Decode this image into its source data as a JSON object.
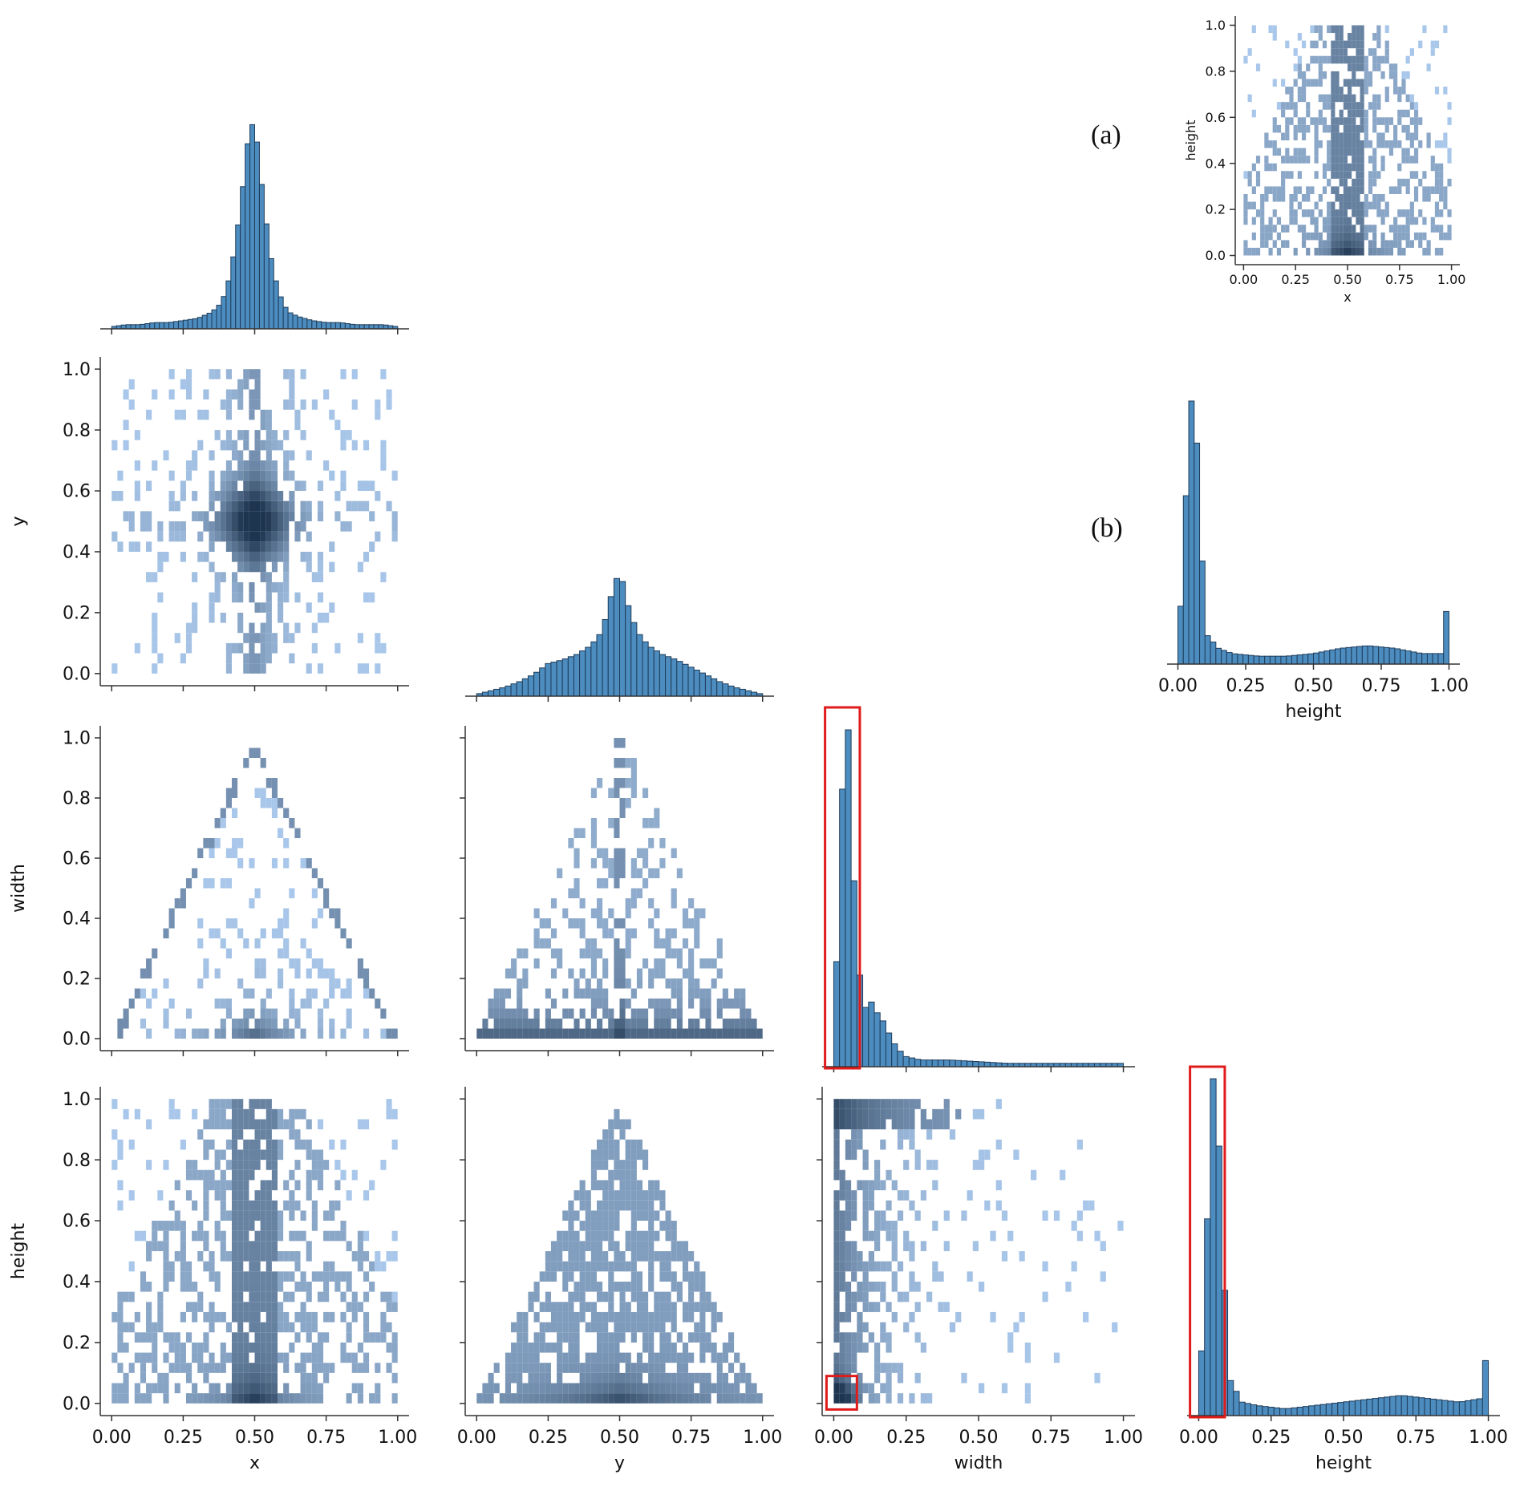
{
  "colors": {
    "bar": "#4c8cbf",
    "bar_edge": "#1f3c5a",
    "heat_light": "#a9c7ea",
    "heat_dark": "#1e3550",
    "highlight": "#e01b1b",
    "axis": "#333333"
  },
  "annotations": {
    "a": "(a)",
    "b": "(b)"
  },
  "chart_data": [
    {
      "id": "hist_x",
      "type": "bar",
      "x": [
        0.0,
        0.05,
        0.1,
        0.15,
        0.2,
        0.25,
        0.3,
        0.35,
        0.38,
        0.4,
        0.42,
        0.44,
        0.46,
        0.48,
        0.5,
        0.52,
        0.54,
        0.56,
        0.58,
        0.6,
        0.62,
        0.65,
        0.7,
        0.75,
        0.8,
        0.85,
        0.9,
        0.95,
        1.0
      ],
      "values": [
        1,
        2,
        2,
        3,
        3,
        4,
        5,
        8,
        12,
        18,
        30,
        48,
        70,
        95,
        100,
        75,
        52,
        32,
        20,
        12,
        8,
        6,
        4,
        3,
        3,
        2,
        2,
        2,
        1
      ],
      "xlim": [
        0,
        1
      ],
      "ylabel": ""
    },
    {
      "id": "heat_x_y",
      "type": "heatmap",
      "xlabel": "",
      "ylabel": "y",
      "xlim": [
        0,
        1
      ],
      "ylim": [
        0,
        1
      ],
      "yticks": [
        "0.0",
        "0.2",
        "0.4",
        "0.6",
        "0.8",
        "1.0"
      ],
      "pattern": "cross",
      "center": [
        0.5,
        0.5
      ]
    },
    {
      "id": "hist_y",
      "type": "bar",
      "x": [
        0.0,
        0.05,
        0.1,
        0.15,
        0.2,
        0.25,
        0.3,
        0.35,
        0.4,
        0.44,
        0.47,
        0.5,
        0.53,
        0.56,
        0.6,
        0.65,
        0.7,
        0.75,
        0.8,
        0.85,
        0.9,
        0.95,
        1.0
      ],
      "values": [
        1,
        3,
        5,
        8,
        12,
        18,
        20,
        23,
        28,
        36,
        55,
        70,
        50,
        36,
        28,
        23,
        20,
        16,
        12,
        8,
        5,
        3,
        1
      ],
      "xlim": [
        0,
        1
      ]
    },
    {
      "id": "heat_x_width",
      "type": "heatmap",
      "ylabel": "width",
      "xlim": [
        0,
        1
      ],
      "ylim": [
        0,
        1
      ],
      "yticks": [
        "0.0",
        "0.2",
        "0.4",
        "0.6",
        "0.8",
        "1.0"
      ],
      "pattern": "triangle-outline",
      "center": [
        0.5,
        0.03
      ]
    },
    {
      "id": "heat_y_width",
      "type": "heatmap",
      "xlim": [
        0,
        1
      ],
      "ylim": [
        0,
        1
      ],
      "pattern": "triangle-filled",
      "center": [
        0.5,
        0.03
      ]
    },
    {
      "id": "hist_width",
      "type": "bar",
      "x": [
        0.0,
        0.025,
        0.05,
        0.075,
        0.1,
        0.125,
        0.15,
        0.175,
        0.2,
        0.225,
        0.25,
        0.3,
        0.4,
        0.5,
        0.6,
        0.7,
        0.8,
        0.9,
        1.0
      ],
      "values": [
        0,
        0.78,
        1.0,
        0.44,
        0.16,
        0.2,
        0.16,
        0.13,
        0.08,
        0.05,
        0.03,
        0.02,
        0.02,
        0.015,
        0.01,
        0.01,
        0.01,
        0.01,
        0.01
      ],
      "xlim": [
        0,
        1
      ]
    },
    {
      "id": "heat_x_height",
      "type": "heatmap",
      "xlabel": "x",
      "ylabel": "height",
      "xlim": [
        0,
        1
      ],
      "ylim": [
        0,
        1
      ],
      "xticks": [
        "0.00",
        "0.25",
        "0.50",
        "0.75",
        "1.00"
      ],
      "yticks": [
        "0.0",
        "0.2",
        "0.4",
        "0.6",
        "0.8",
        "1.0"
      ],
      "pattern": "height-x",
      "center": [
        0.5,
        0.03
      ]
    },
    {
      "id": "heat_y_height",
      "type": "heatmap",
      "xlabel": "y",
      "xlim": [
        0,
        1
      ],
      "ylim": [
        0,
        1
      ],
      "xticks": [
        "0.00",
        "0.25",
        "0.50",
        "0.75",
        "1.00"
      ],
      "pattern": "triangle-up",
      "center": [
        0.5,
        0.03
      ]
    },
    {
      "id": "heat_width_height",
      "type": "heatmap",
      "xlabel": "width",
      "xlim": [
        0,
        1
      ],
      "ylim": [
        0,
        1
      ],
      "xticks": [
        "0.00",
        "0.25",
        "0.50",
        "0.75",
        "1.00"
      ],
      "pattern": "corner",
      "center": [
        0.03,
        0.03
      ]
    },
    {
      "id": "hist_height",
      "type": "bar",
      "xlabel": "height",
      "x": [
        0.0,
        0.025,
        0.05,
        0.075,
        0.1,
        0.15,
        0.2,
        0.3,
        0.4,
        0.5,
        0.6,
        0.7,
        0.8,
        0.9,
        0.97,
        1.0
      ],
      "values": [
        0,
        0.48,
        1.0,
        0.75,
        0.12,
        0.04,
        0.03,
        0.02,
        0.03,
        0.04,
        0.05,
        0.06,
        0.05,
        0.04,
        0.05,
        0.22
      ],
      "xlim": [
        0,
        1
      ],
      "xticks": [
        "0.00",
        "0.25",
        "0.50",
        "0.75",
        "1.00"
      ]
    },
    {
      "id": "inset_a",
      "type": "heatmap",
      "xlabel": "x",
      "ylabel": "height",
      "xlim": [
        0,
        1
      ],
      "ylim": [
        0,
        1
      ],
      "xticks": [
        "0.00",
        "0.25",
        "0.50",
        "0.75",
        "1.00"
      ],
      "yticks": [
        "0.0",
        "0.2",
        "0.4",
        "0.6",
        "0.8",
        "1.0"
      ],
      "pattern": "height-x",
      "center": [
        0.5,
        0.03
      ]
    },
    {
      "id": "inset_b",
      "type": "bar",
      "xlabel": "height",
      "x": [
        0.0,
        0.025,
        0.05,
        0.075,
        0.1,
        0.15,
        0.2,
        0.3,
        0.4,
        0.5,
        0.6,
        0.7,
        0.8,
        0.9,
        0.97,
        1.0
      ],
      "values": [
        0,
        0.55,
        1.0,
        0.8,
        0.12,
        0.06,
        0.04,
        0.03,
        0.03,
        0.04,
        0.06,
        0.07,
        0.06,
        0.04,
        0.04,
        0.28
      ],
      "xlim": [
        0,
        1
      ],
      "xticks": [
        "0.00",
        "0.25",
        "0.50",
        "0.75",
        "1.00"
      ]
    }
  ]
}
